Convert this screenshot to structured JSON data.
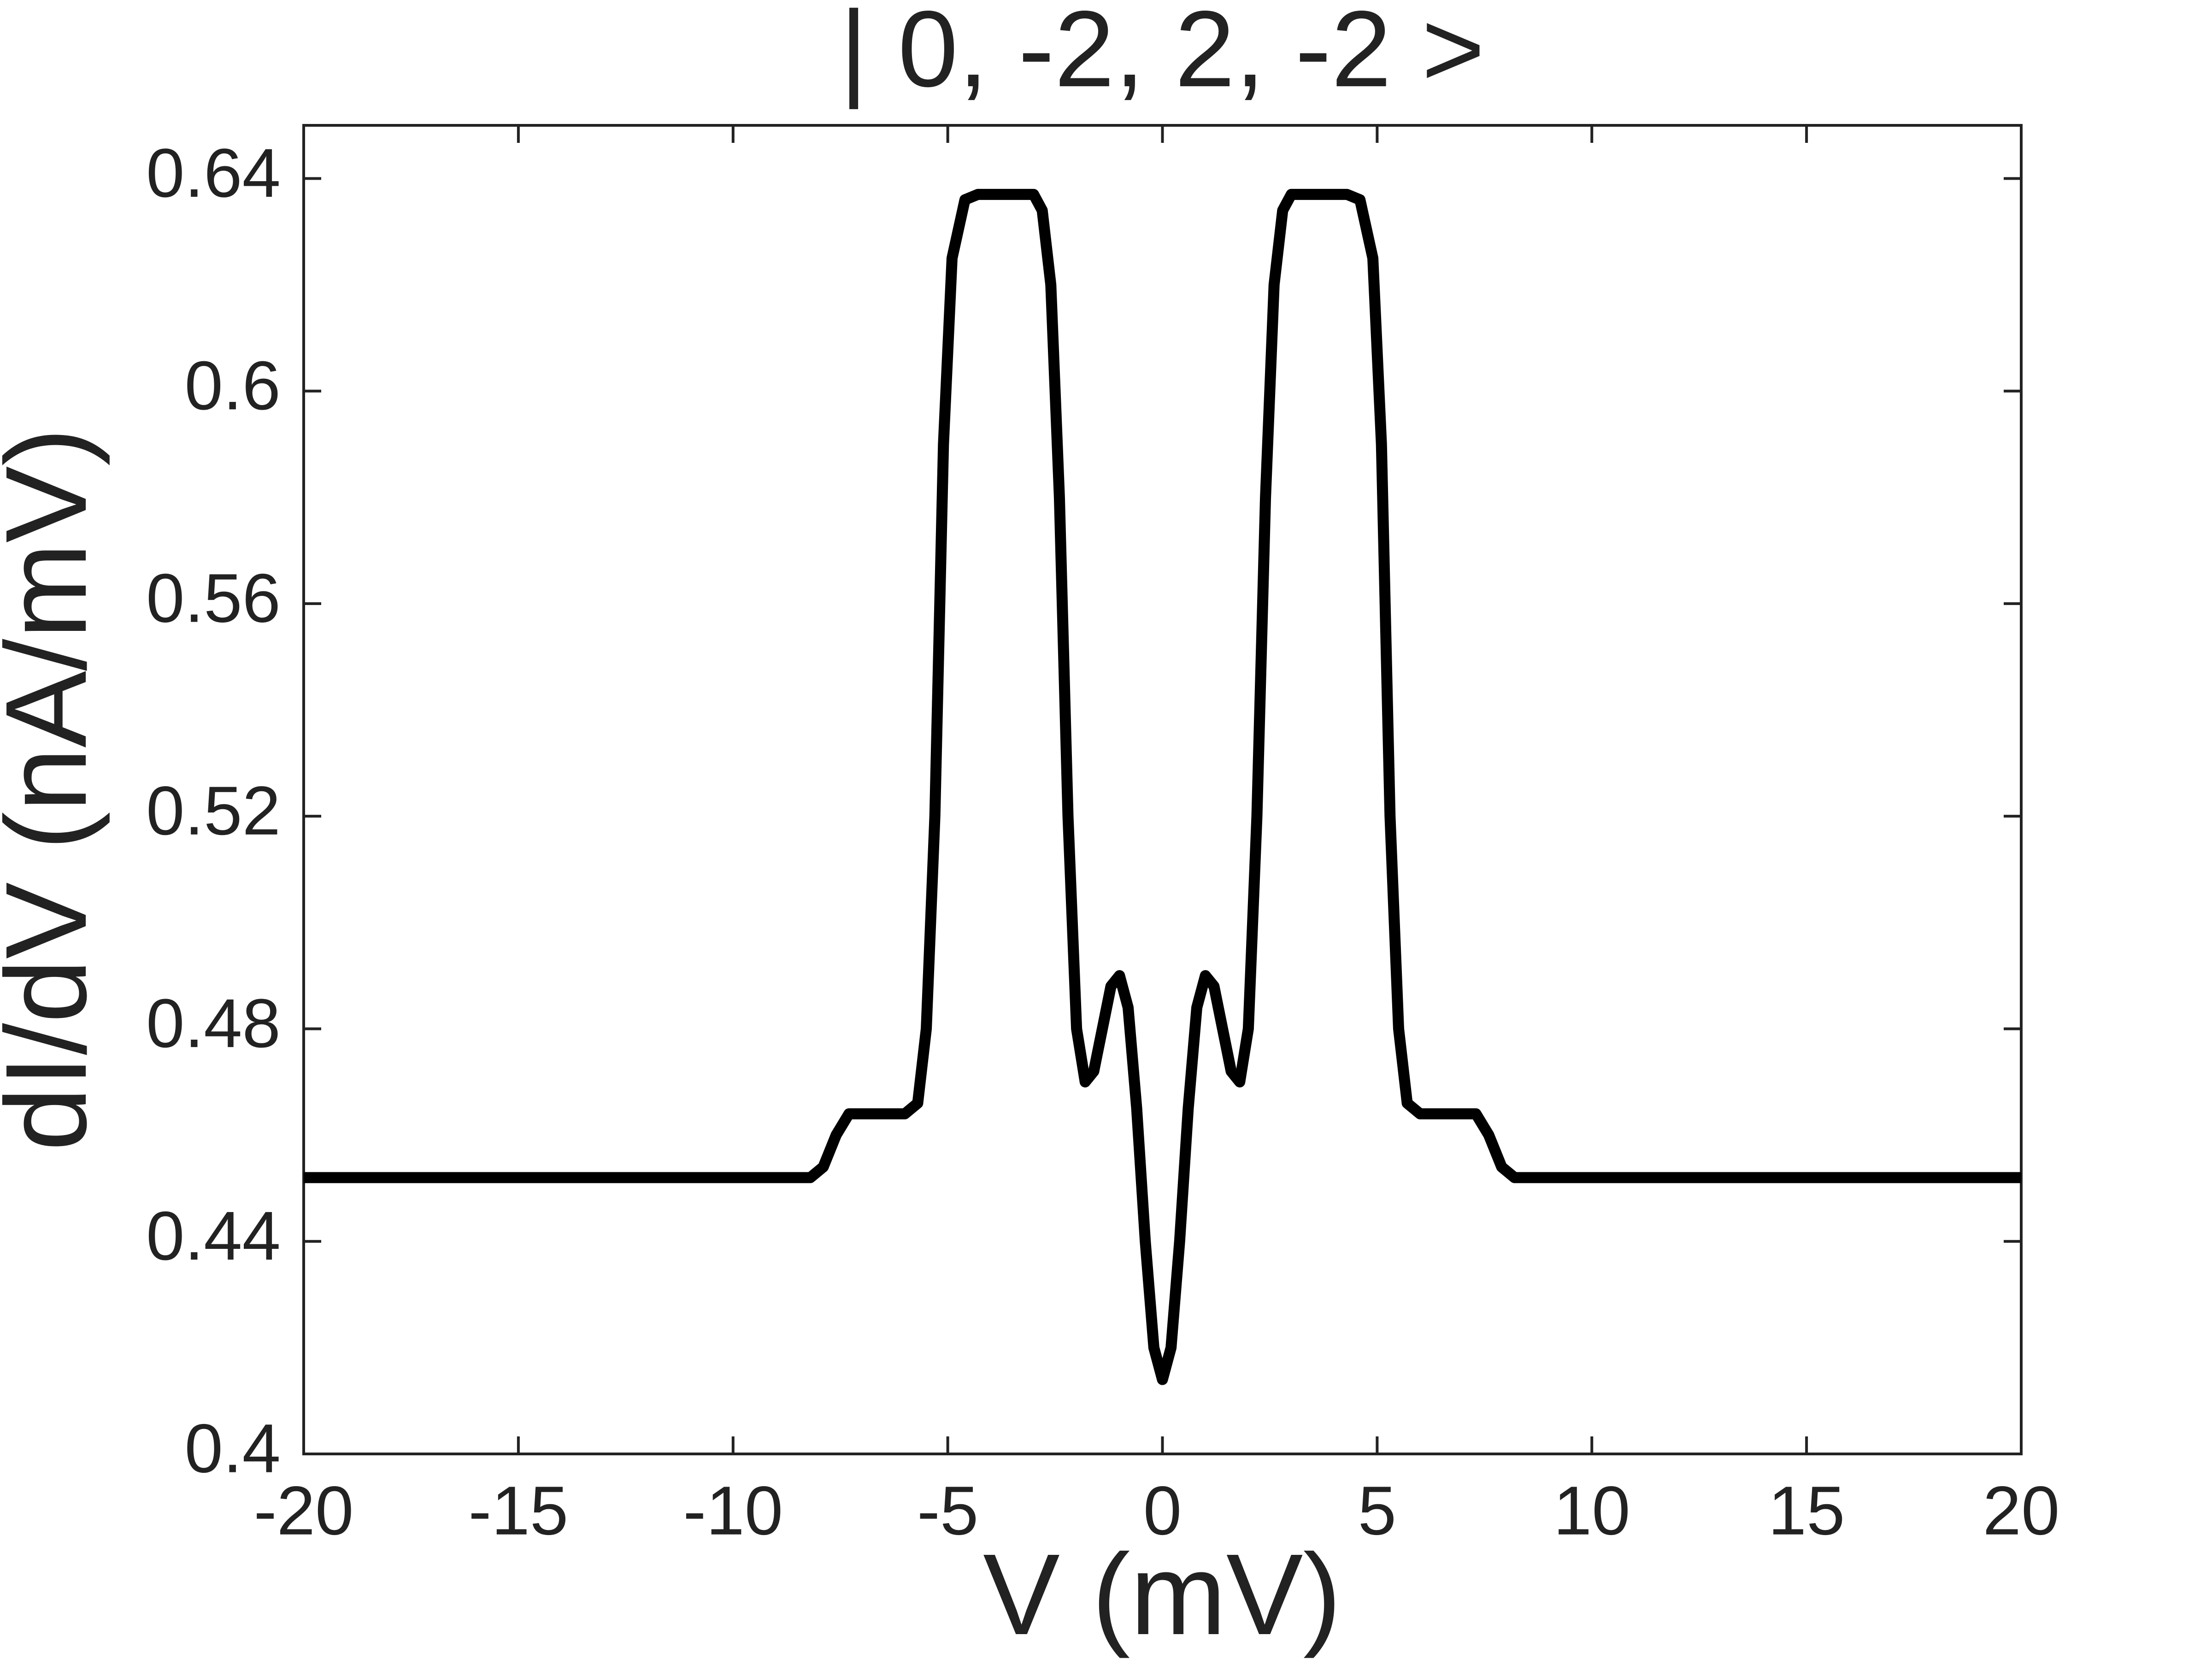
{
  "chart_data": {
    "type": "line",
    "title": "| 0, -2, 2, -2 >",
    "x_label": "V (mV)",
    "y_label": "dI/dV (nA/mV)",
    "x": [
      -20,
      -8.2,
      -7.9,
      -7.6,
      -7.3,
      -6.0,
      -5.7,
      -5.5,
      -5.3,
      -5.1,
      -4.9,
      -4.6,
      -4.3,
      -3.0,
      -2.8,
      -2.6,
      -2.4,
      -2.2,
      -2.0,
      -1.8,
      -1.6,
      -1.4,
      -1.2,
      -1.0,
      -0.8,
      -0.6,
      -0.4,
      -0.2,
      0,
      0.2,
      0.4,
      0.6,
      0.8,
      1.0,
      1.2,
      1.4,
      1.6,
      1.8,
      2.0,
      2.2,
      2.4,
      2.6,
      2.8,
      3.0,
      4.3,
      4.6,
      4.9,
      5.1,
      5.3,
      5.5,
      5.7,
      6.0,
      7.3,
      7.6,
      7.9,
      8.2,
      20
    ],
    "series": [
      {
        "color": "#000000",
        "values": [
          0.452,
          0.452,
          0.454,
          0.46,
          0.464,
          0.464,
          0.466,
          0.48,
          0.52,
          0.59,
          0.625,
          0.636,
          0.637,
          0.637,
          0.634,
          0.62,
          0.58,
          0.52,
          0.48,
          0.47,
          0.472,
          0.48,
          0.488,
          0.49,
          0.484,
          0.465,
          0.44,
          0.42,
          0.414,
          0.42,
          0.44,
          0.465,
          0.484,
          0.49,
          0.488,
          0.48,
          0.472,
          0.47,
          0.48,
          0.52,
          0.58,
          0.62,
          0.634,
          0.637,
          0.637,
          0.636,
          0.625,
          0.59,
          0.52,
          0.48,
          0.466,
          0.464,
          0.464,
          0.46,
          0.454,
          0.452,
          0.452
        ]
      }
    ],
    "xlim": [
      -20,
      20
    ],
    "ylim": [
      0.4,
      0.65
    ],
    "xticks": [
      -20,
      -15,
      -10,
      -5,
      0,
      5,
      10,
      15,
      20
    ],
    "yticks": [
      0.4,
      0.44,
      0.48,
      0.52,
      0.56,
      0.6,
      0.64
    ]
  }
}
